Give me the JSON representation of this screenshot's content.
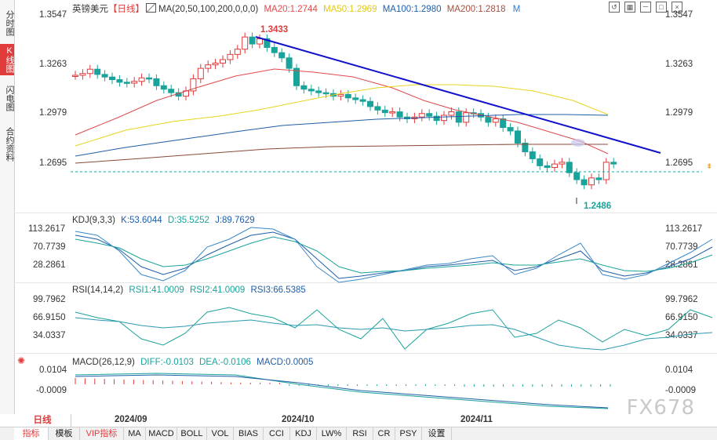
{
  "left_tabs": [
    {
      "label": "分时图",
      "active": false
    },
    {
      "label": "K线图",
      "active": true
    },
    {
      "label": "闪电图",
      "active": false
    },
    {
      "label": "合约资料",
      "active": false
    }
  ],
  "main": {
    "symbol": "英镑美元",
    "period_tag": "【日线】",
    "ma_header": "MA(20,50,100,200,0,0,0)",
    "ma20": "MA20:1.2744",
    "ma50": "MA50:1.2969",
    "ma100": "MA100:1.2980",
    "ma200": "MA200:1.2818",
    "m_label": "M",
    "y_ticks": [
      "1.3547",
      "1.3263",
      "1.2979",
      "1.2695"
    ],
    "high_label": "1.3433",
    "low_label": "1.2486"
  },
  "kdj": {
    "name": "KDJ(9,3,3)",
    "k": "K:53.6044",
    "d": "D:35.5252",
    "j": "J:89.7629",
    "ticks": [
      "113.2617",
      "70.7739",
      "28.2861"
    ]
  },
  "rsi": {
    "name": "RSI(14,14,2)",
    "r1": "RSI1:41.0009",
    "r2": "RSI2:41.0009",
    "r3": "RSI3:66.5385",
    "ticks": [
      "99.7962",
      "66.9150",
      "34.0337"
    ]
  },
  "macd": {
    "name": "MACD(26,12,9)",
    "diff": "DIFF:-0.0103",
    "dea": "DEA:-0.0106",
    "macd": "MACD:0.0005",
    "ticks": [
      "0.0104",
      "-0.0009"
    ]
  },
  "x_labels": [
    "2024/09",
    "2024/10",
    "2024/11"
  ],
  "period_button": "日线",
  "watermark": "FX678",
  "toolbar": [
    "指标",
    "模板",
    "VIP指标",
    "MA",
    "MACD",
    "BOLL",
    "VOL",
    "BIAS",
    "CCI",
    "KDJ",
    "LW%",
    "RSI",
    "CR",
    "PSY",
    "设置"
  ],
  "colors": {
    "up": "#e2393b",
    "down": "#1aa39a",
    "ma20": "#e04a4a",
    "ma50": "#e8d41f",
    "ma100": "#1f5da8",
    "ma200": "#8a4a3a",
    "trend": "#1111cc"
  }
}
